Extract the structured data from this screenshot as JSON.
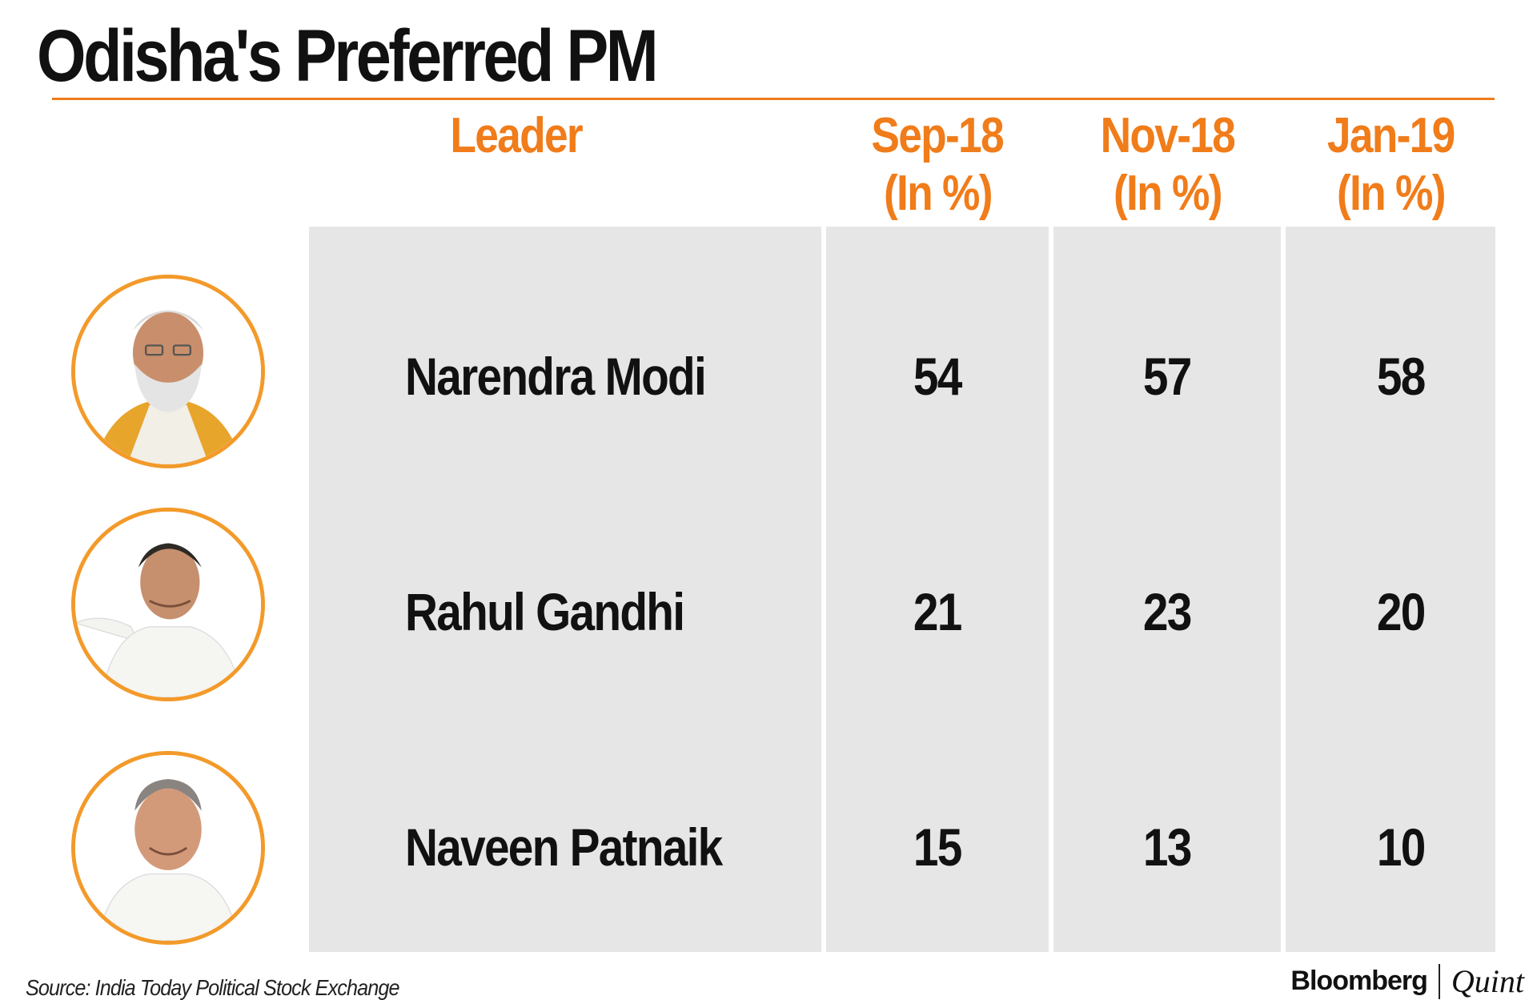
{
  "title": "Odisha's Preferred PM",
  "source": "Source: India Today Political Stock Exchange",
  "brand": {
    "primary": "Bloomberg",
    "secondary": "Quint"
  },
  "colors": {
    "accent": "#f07c1a",
    "cell_bg": "#e6e6e6",
    "text": "#111111"
  },
  "chart_data": {
    "type": "table",
    "title": "Odisha's Preferred PM",
    "columns": [
      {
        "key": "leader",
        "label": "Leader"
      },
      {
        "key": "sep18",
        "label": "Sep-18",
        "unit": "(In %)"
      },
      {
        "key": "nov18",
        "label": "Nov-18",
        "unit": "(In %)"
      },
      {
        "key": "jan19",
        "label": "Jan-19",
        "unit": "(In %)"
      }
    ],
    "rows": [
      {
        "leader": "Narendra Modi",
        "avatar_icon": "narendra-modi-photo-icon",
        "values": [
          "54",
          "57",
          "58"
        ]
      },
      {
        "leader": "Rahul Gandhi",
        "avatar_icon": "rahul-gandhi-photo-icon",
        "values": [
          "21",
          "23",
          "20"
        ]
      },
      {
        "leader": "Naveen Patnaik",
        "avatar_icon": "naveen-patnaik-photo-icon",
        "values": [
          "15",
          "13",
          "10"
        ]
      }
    ]
  }
}
